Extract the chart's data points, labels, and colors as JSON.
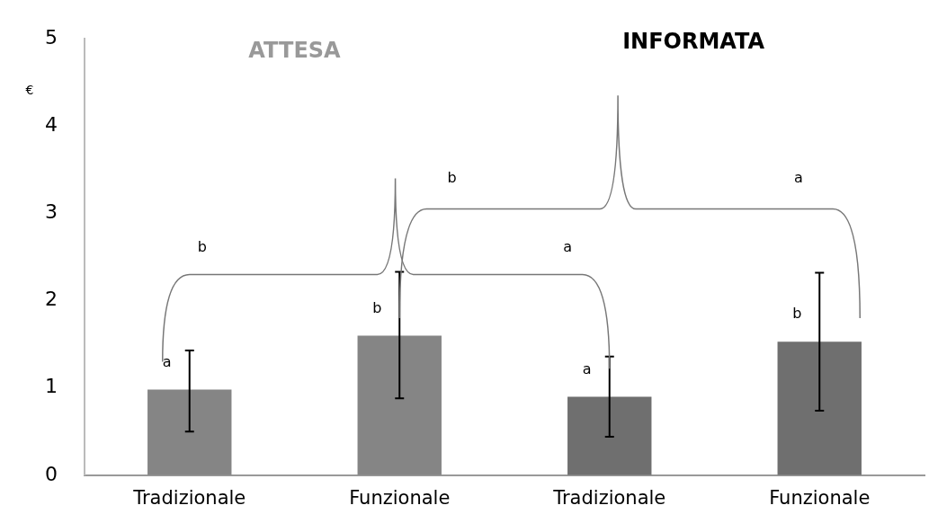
{
  "chart_data": {
    "type": "bar",
    "ylabel": "€",
    "categories": [
      "Tradizionale",
      "Funzionale",
      "Tradizionale",
      "Funzionale"
    ],
    "values": [
      0.98,
      1.6,
      0.9,
      1.53
    ],
    "colors": [
      "#858585",
      "#858585",
      "#6f6f6f",
      "#6f6f6f"
    ],
    "errors": [
      [
        0.5,
        1.43
      ],
      [
        0.88,
        2.33
      ],
      [
        0.44,
        1.36
      ],
      [
        0.74,
        2.32
      ]
    ],
    "value_labels": [
      "a",
      "b",
      "a",
      "b"
    ],
    "annotations": [
      "ATTESA",
      "INFORMATA",
      "b",
      "a",
      "b",
      "a"
    ],
    "ylim": [
      0,
      5
    ],
    "yticks": [
      0,
      1,
      2,
      3,
      4,
      5
    ],
    "grid": false,
    "legend": false
  }
}
